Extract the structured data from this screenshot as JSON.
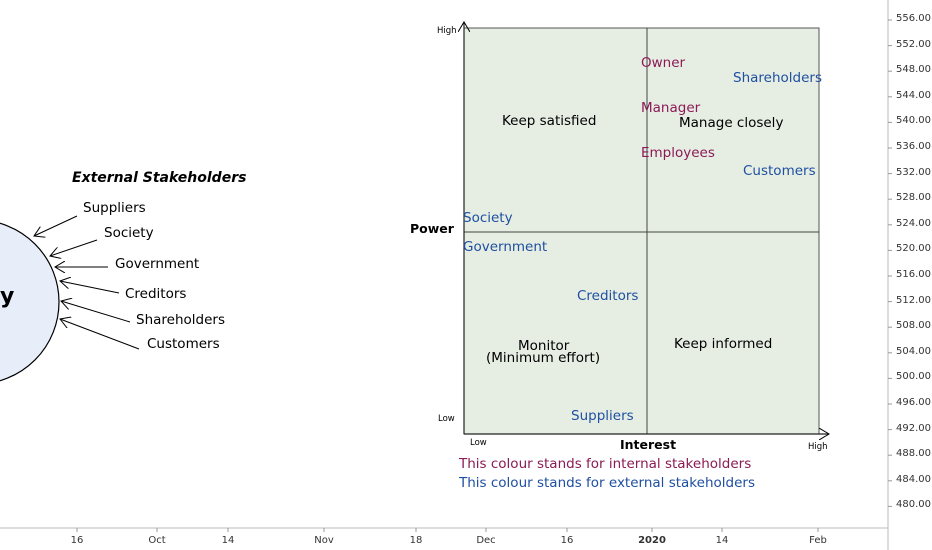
{
  "external_stakeholders": {
    "title": "External Stakeholders",
    "circle_letter": "y",
    "items": [
      "Suppliers",
      "Society",
      "Government",
      "Creditors",
      "Shareholders",
      "Customers"
    ]
  },
  "grid": {
    "y_axis_label": "Power",
    "x_axis_label": "Interest",
    "y_high": "High",
    "y_low": "Low",
    "x_low": "Low",
    "x_high": "High",
    "quadrants": {
      "top_left": "Keep satisfied",
      "top_right": "Manage closely",
      "bottom_left_line1": "Monitor",
      "bottom_left_line2": "(Minimum effort)",
      "bottom_right": "Keep informed"
    },
    "internal": {
      "owner": "Owner",
      "manager": "Manager",
      "employees": "Employees"
    },
    "external": {
      "shareholders": "Shareholders",
      "customers": "Customers",
      "society": "Society",
      "government": "Government",
      "creditors": "Creditors",
      "suppliers": "Suppliers"
    },
    "legend_internal": "This colour stands for internal stakeholders",
    "legend_external": "This colour stands for external stakeholders"
  },
  "price_axis": [
    "556.00",
    "552.00",
    "548.00",
    "544.00",
    "540.00",
    "536.00",
    "532.00",
    "528.00",
    "524.00",
    "520.00",
    "516.00",
    "512.00",
    "508.00",
    "504.00",
    "500.00",
    "496.00",
    "492.00",
    "488.00",
    "484.00",
    "480.00"
  ],
  "time_axis": [
    "16",
    "Oct",
    "14",
    "Nov",
    "18",
    "Dec",
    "16",
    "2020",
    "14",
    "Feb"
  ],
  "colors": {
    "grid_fill": "#e6eee4",
    "circle_fill": "#e8eef9",
    "internal": "#8b1a55",
    "external": "#1f4fa0"
  }
}
